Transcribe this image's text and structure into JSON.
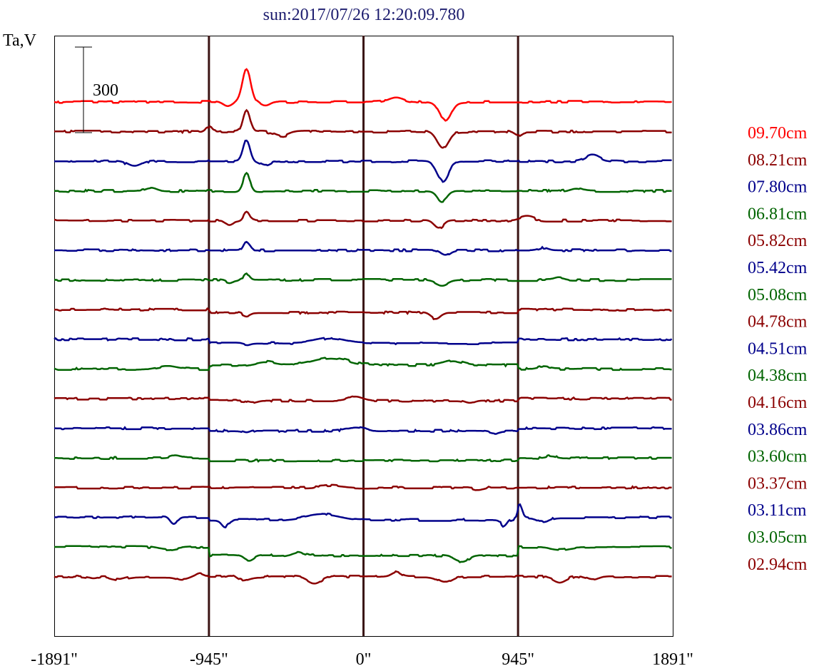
{
  "chart_data": {
    "type": "line",
    "title": "sun:2017/07/26 12:20:09.780",
    "ylabel": "Ta,V",
    "xlabel": "",
    "x_ticks": [
      -1891,
      -945,
      0,
      945,
      1891
    ],
    "x_tick_labels": [
      "-1891\"",
      "-945\"",
      "0\"",
      "945\"",
      "1891\""
    ],
    "xlim": [
      -1891,
      1891
    ],
    "vertical_lines": [
      -945,
      0,
      945
    ],
    "grid": false,
    "legend_placement": "right",
    "scale_bar": {
      "label": "300",
      "value": 300
    },
    "series": [
      {
        "name": "09.70cm",
        "color": "#ff0000",
        "offset": 0,
        "features": [
          [
            -715,
            380,
            35,
            "g"
          ],
          [
            500,
            -215,
            50,
            "g"
          ],
          [
            -830,
            -55,
            40,
            "g"
          ],
          [
            -600,
            -45,
            40,
            "g"
          ],
          [
            200,
            50,
            60,
            "g"
          ]
        ]
      },
      {
        "name": "08.21cm",
        "color": "#8b0000",
        "offset": 0,
        "features": [
          [
            -715,
            260,
            30,
            "g"
          ],
          [
            485,
            -195,
            50,
            "g"
          ],
          [
            -500,
            -55,
            60,
            "g"
          ],
          [
            -945,
            55,
            30,
            "g"
          ],
          [
            945,
            -45,
            30,
            "g"
          ]
        ]
      },
      {
        "name": "07.80cm",
        "color": "#00008b",
        "offset": 0,
        "features": [
          [
            -715,
            250,
            30,
            "g"
          ],
          [
            485,
            -230,
            50,
            "g"
          ],
          [
            -1400,
            -65,
            60,
            "g"
          ],
          [
            1400,
            70,
            60,
            "g"
          ],
          [
            -600,
            -45,
            40,
            "g"
          ]
        ]
      },
      {
        "name": "06.81cm",
        "color": "#006400",
        "offset": 0,
        "features": [
          [
            -715,
            200,
            30,
            "g"
          ],
          [
            480,
            -120,
            40,
            "g"
          ],
          [
            -1300,
            40,
            50,
            "g"
          ],
          [
            1300,
            35,
            50,
            "g"
          ]
        ]
      },
      {
        "name": "05.82cm",
        "color": "#8b0000",
        "offset": 0,
        "features": [
          [
            -715,
            100,
            25,
            "g"
          ],
          [
            460,
            -90,
            40,
            "g"
          ],
          [
            -820,
            -40,
            30,
            "g"
          ],
          [
            1000,
            45,
            60,
            "g"
          ]
        ]
      },
      {
        "name": "05.42cm",
        "color": "#00008b",
        "offset": 0,
        "features": [
          [
            -715,
            110,
            25,
            "g"
          ],
          [
            500,
            -60,
            40,
            "g"
          ],
          [
            1100,
            30,
            40,
            "g"
          ]
        ]
      },
      {
        "name": "05.08cm",
        "color": "#006400",
        "offset": 0,
        "features": [
          [
            -715,
            70,
            25,
            "g"
          ],
          [
            480,
            -60,
            50,
            "g"
          ],
          [
            -820,
            -30,
            30,
            "g"
          ],
          [
            1200,
            25,
            40,
            "g"
          ]
        ]
      },
      {
        "name": "04.78cm",
        "color": "#8b0000",
        "offset": 0,
        "features": [
          [
            -945,
            -35,
            0,
            "s"
          ],
          [
            945,
            35,
            0,
            "s"
          ],
          [
            440,
            -70,
            40,
            "g"
          ],
          [
            -715,
            -35,
            30,
            "g"
          ]
        ]
      },
      {
        "name": "04.51cm",
        "color": "#00008b",
        "offset": 0,
        "features": [
          [
            -945,
            -45,
            0,
            "s"
          ],
          [
            945,
            45,
            0,
            "s"
          ],
          [
            -200,
            55,
            120,
            "g"
          ],
          [
            -715,
            -20,
            30,
            "g"
          ]
        ]
      },
      {
        "name": "04.38cm",
        "color": "#006400",
        "offset": 0,
        "features": [
          [
            -945,
            45,
            0,
            "s"
          ],
          [
            945,
            -45,
            0,
            "s"
          ],
          [
            -200,
            85,
            150,
            "g"
          ],
          [
            -600,
            40,
            80,
            "g"
          ],
          [
            -1200,
            35,
            80,
            "g"
          ],
          [
            1100,
            25,
            50,
            "g"
          ],
          [
            550,
            50,
            80,
            "g"
          ]
        ]
      },
      {
        "name": "04.16cm",
        "color": "#8b0000",
        "offset": 0,
        "features": [
          [
            -945,
            -25,
            0,
            "s"
          ],
          [
            945,
            25,
            0,
            "s"
          ],
          [
            -50,
            45,
            60,
            "g"
          ],
          [
            -680,
            -25,
            40,
            "g"
          ],
          [
            650,
            -30,
            40,
            "g"
          ]
        ]
      },
      {
        "name": "03.86cm",
        "color": "#00008b",
        "offset": 0,
        "features": [
          [
            -945,
            -30,
            0,
            "s"
          ],
          [
            945,
            30,
            0,
            "s"
          ],
          [
            -715,
            -25,
            30,
            "g"
          ],
          [
            -50,
            40,
            80,
            "g"
          ],
          [
            800,
            -25,
            40,
            "g"
          ]
        ]
      },
      {
        "name": "03.60cm",
        "color": "#006400",
        "offset": 0,
        "features": [
          [
            -945,
            -30,
            0,
            "s"
          ],
          [
            945,
            30,
            0,
            "s"
          ],
          [
            -1150,
            25,
            40,
            "g"
          ],
          [
            1150,
            25,
            40,
            "g"
          ]
        ]
      },
      {
        "name": "03.37cm",
        "color": "#8b0000",
        "offset": 0,
        "features": [
          [
            -200,
            25,
            100,
            "g"
          ],
          [
            700,
            -25,
            40,
            "g"
          ]
        ]
      },
      {
        "name": "03.11cm",
        "color": "#00008b",
        "offset": 0,
        "features": [
          [
            -945,
            -30,
            0,
            "s"
          ],
          [
            945,
            30,
            0,
            "s"
          ],
          [
            -1160,
            -90,
            30,
            "g"
          ],
          [
            -845,
            -80,
            30,
            "g"
          ],
          [
            -250,
            70,
            150,
            "g"
          ],
          [
            860,
            -80,
            25,
            "g"
          ],
          [
            955,
            160,
            20,
            "g"
          ],
          [
            1100,
            -50,
            50,
            "g"
          ]
        ]
      },
      {
        "name": "03.05cm",
        "color": "#006400",
        "offset": 0,
        "features": [
          [
            -945,
            -100,
            0,
            "s"
          ],
          [
            945,
            100,
            0,
            "s"
          ],
          [
            -1200,
            -35,
            80,
            "g"
          ],
          [
            1200,
            -35,
            80,
            "g"
          ],
          [
            -700,
            -60,
            40,
            "g"
          ],
          [
            -400,
            40,
            50,
            "g"
          ],
          [
            600,
            -70,
            60,
            "g"
          ]
        ]
      },
      {
        "name": "02.94cm",
        "color": "#8b0000",
        "offset": 0,
        "features": [
          [
            -1650,
            -25,
            40,
            "g"
          ],
          [
            -1500,
            -35,
            60,
            "g"
          ],
          [
            -1100,
            -40,
            50,
            "g"
          ],
          [
            -750,
            -45,
            60,
            "g"
          ],
          [
            -300,
            -80,
            60,
            "g"
          ],
          [
            -800,
            40,
            40,
            "g"
          ],
          [
            500,
            -70,
            60,
            "g"
          ],
          [
            200,
            50,
            40,
            "g"
          ],
          [
            1200,
            -60,
            50,
            "g"
          ],
          [
            1400,
            -40,
            50,
            "g"
          ],
          [
            -1000,
            30,
            30,
            "g"
          ]
        ]
      }
    ]
  }
}
